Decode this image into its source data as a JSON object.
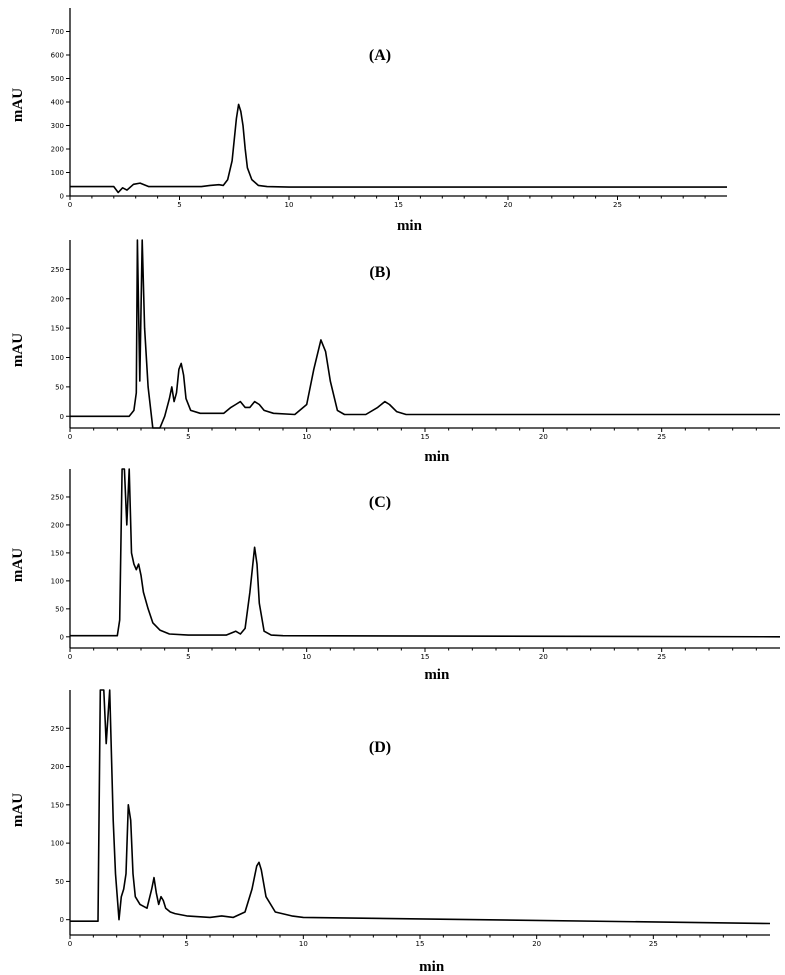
{
  "chart_data": [
    {
      "type": "line",
      "title": "(A)",
      "xlabel": "min",
      "ylabel": "mAU",
      "xlim": [
        0,
        30
      ],
      "ylim": [
        0,
        800
      ],
      "xticks": [
        0,
        5,
        10,
        15,
        20,
        25
      ],
      "yticks": [
        0,
        100,
        200,
        300,
        400,
        500,
        600,
        700
      ],
      "grid": false,
      "x": [
        0,
        2.0,
        2.2,
        2.4,
        2.6,
        2.9,
        3.2,
        3.6,
        4.0,
        6.0,
        6.4,
        6.8,
        7.0,
        7.2,
        7.4,
        7.6,
        7.7,
        7.8,
        7.9,
        8.0,
        8.1,
        8.3,
        8.6,
        9.0,
        10.0,
        30
      ],
      "y": [
        40,
        40,
        15,
        35,
        25,
        50,
        55,
        40,
        40,
        40,
        45,
        48,
        45,
        70,
        150,
        330,
        390,
        360,
        300,
        200,
        120,
        70,
        45,
        40,
        38,
        38
      ]
    },
    {
      "type": "line",
      "title": "(B)",
      "xlabel": "min",
      "ylabel": "mAU",
      "xlim": [
        0,
        30
      ],
      "ylim": [
        -20,
        300
      ],
      "xticks": [
        0,
        5,
        10,
        15,
        20,
        25
      ],
      "yticks": [
        0,
        50,
        100,
        150,
        200,
        250
      ],
      "grid": false,
      "x": [
        0,
        2.5,
        2.7,
        2.8,
        2.85,
        2.95,
        3.05,
        3.15,
        3.3,
        3.5,
        3.6,
        3.8,
        4.0,
        4.2,
        4.3,
        4.4,
        4.5,
        4.6,
        4.7,
        4.8,
        4.9,
        5.1,
        5.5,
        6.5,
        6.8,
        7.0,
        7.2,
        7.4,
        7.6,
        7.8,
        8.0,
        8.2,
        8.6,
        9.5,
        10.0,
        10.3,
        10.6,
        10.8,
        11.0,
        11.3,
        11.6,
        12.5,
        13.0,
        13.3,
        13.5,
        13.8,
        14.2,
        15.0,
        30
      ],
      "y": [
        0,
        0,
        10,
        40,
        300,
        60,
        300,
        150,
        50,
        -20,
        -20,
        -20,
        0,
        30,
        50,
        25,
        40,
        80,
        90,
        70,
        30,
        10,
        5,
        5,
        15,
        20,
        25,
        15,
        15,
        25,
        20,
        10,
        5,
        3,
        20,
        80,
        130,
        110,
        60,
        10,
        3,
        3,
        15,
        25,
        20,
        8,
        3,
        3,
        3
      ]
    },
    {
      "type": "line",
      "title": "(C)",
      "xlabel": "min",
      "ylabel": "mAU",
      "xlim": [
        0,
        30
      ],
      "ylim": [
        -20,
        300
      ],
      "xticks": [
        0,
        5,
        10,
        15,
        20,
        25
      ],
      "yticks": [
        0,
        50,
        100,
        150,
        200,
        250
      ],
      "grid": false,
      "x": [
        0,
        2.0,
        2.1,
        2.2,
        2.3,
        2.4,
        2.5,
        2.6,
        2.7,
        2.8,
        2.9,
        3.0,
        3.1,
        3.3,
        3.5,
        3.8,
        4.2,
        5.0,
        6.6,
        7.0,
        7.2,
        7.4,
        7.6,
        7.8,
        7.9,
        8.0,
        8.2,
        8.5,
        9.0,
        30
      ],
      "y": [
        2,
        2,
        30,
        300,
        300,
        200,
        300,
        150,
        130,
        120,
        130,
        110,
        80,
        50,
        25,
        12,
        5,
        3,
        3,
        10,
        5,
        15,
        80,
        160,
        130,
        60,
        10,
        3,
        2,
        0
      ]
    },
    {
      "type": "line",
      "title": "(D)",
      "xlabel": "min",
      "ylabel": "mAU",
      "xlim": [
        0,
        30
      ],
      "ylim": [
        -20,
        300
      ],
      "xticks": [
        0,
        5,
        10,
        15,
        20,
        25
      ],
      "yticks": [
        0,
        50,
        100,
        150,
        200,
        250
      ],
      "grid": false,
      "x": [
        0,
        1.2,
        1.3,
        1.45,
        1.55,
        1.7,
        1.85,
        1.95,
        2.1,
        2.2,
        2.3,
        2.4,
        2.5,
        2.6,
        2.7,
        2.8,
        3.0,
        3.3,
        3.5,
        3.6,
        3.7,
        3.8,
        3.9,
        4.0,
        4.1,
        4.3,
        4.5,
        5.0,
        6.0,
        6.5,
        7.0,
        7.5,
        7.8,
        8.0,
        8.1,
        8.2,
        8.4,
        8.8,
        9.5,
        10.0,
        30
      ],
      "y": [
        -2,
        -2,
        300,
        300,
        230,
        300,
        130,
        60,
        0,
        30,
        40,
        60,
        150,
        130,
        60,
        30,
        20,
        15,
        40,
        55,
        35,
        20,
        30,
        25,
        15,
        10,
        8,
        5,
        3,
        5,
        3,
        10,
        40,
        70,
        75,
        65,
        30,
        10,
        5,
        3,
        -5
      ]
    }
  ]
}
